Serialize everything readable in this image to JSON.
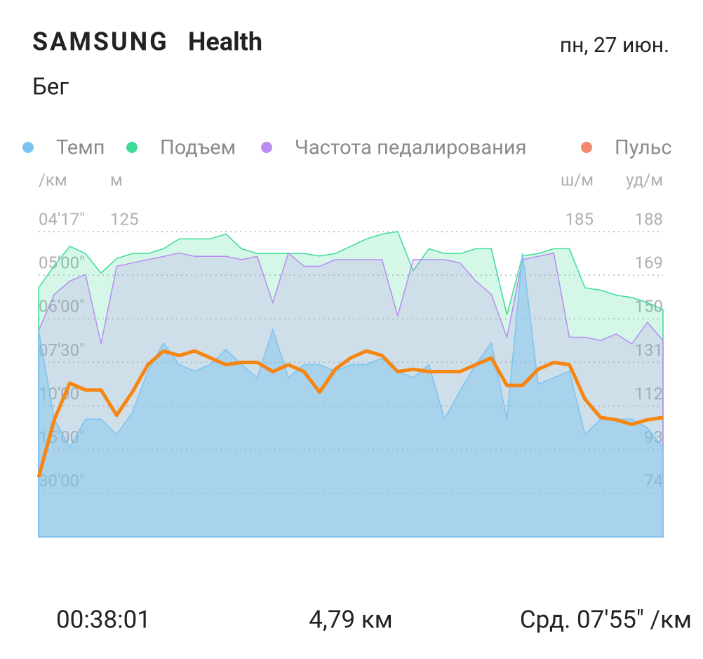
{
  "header": {
    "brand": "SAMSUNG",
    "app": "Health",
    "date": "пн, 27 июн.",
    "activity": "Бег"
  },
  "chart_data": {
    "type": "multi-area",
    "axes": [
      {
        "unit": "/км",
        "lim": [
          0,
          14
        ],
        "ticks": [
          {
            "value": 14,
            "label": "04'17\""
          },
          {
            "value": 12,
            "label": "05'00\""
          },
          {
            "value": 10,
            "label": "06'00\""
          },
          {
            "value": 8,
            "label": "07'30\""
          },
          {
            "value": 6,
            "label": "10'00\""
          },
          {
            "value": 4,
            "label": "15'00\""
          },
          {
            "value": 2,
            "label": "30'00\""
          }
        ]
      },
      {
        "unit": "м",
        "lim": [
          0,
          125
        ],
        "ticks": [
          125
        ]
      },
      {
        "unit": "ш/м",
        "lim": [
          0,
          185
        ],
        "ticks": [
          185
        ]
      },
      {
        "unit": "уд/м",
        "lim": [
          55,
          188
        ],
        "ticks": [
          188,
          169,
          150,
          131,
          112,
          93,
          74
        ]
      }
    ],
    "grid": true,
    "series": [
      {
        "name": "Темп",
        "color": "#7cc4f0",
        "axis": 0,
        "values": [
          9.5,
          5.4,
          4.1,
          5.4,
          5.4,
          4.7,
          5.7,
          7.6,
          8.9,
          7.9,
          7.6,
          7.9,
          8.6,
          7.9,
          7.3,
          9.5,
          7.3,
          7.9,
          7.9,
          7.6,
          7.9,
          7.9,
          8.2,
          7.6,
          7.3,
          7.9,
          5.4,
          6.7,
          7.9,
          8.9,
          5.4,
          13.0,
          7.0,
          7.3,
          7.6,
          4.7,
          5.4,
          5.4,
          5.4,
          5.0,
          4.1
        ]
      },
      {
        "name": "Подъем",
        "color": "#3ddc97",
        "axis": 1,
        "values": [
          102,
          111,
          119,
          116,
          108,
          114,
          116,
          116,
          118,
          122,
          122,
          122,
          124,
          118,
          116,
          116,
          116,
          116,
          115,
          116,
          119,
          122,
          124,
          125,
          109,
          118,
          116,
          116,
          118,
          118,
          91,
          115,
          116,
          118,
          118,
          102,
          101,
          99,
          98,
          96,
          93
        ]
      },
      {
        "name": "Частота педалирования",
        "color": "#b98cf0",
        "axis": 2,
        "values": [
          125,
          147,
          155,
          159,
          117,
          164,
          166,
          168,
          170,
          172,
          170,
          170,
          170,
          168,
          170,
          142,
          172,
          164,
          164,
          168,
          168,
          168,
          168,
          134,
          168,
          168,
          168,
          166,
          155,
          147,
          121,
          168,
          170,
          172,
          121,
          121,
          119,
          123,
          117,
          130,
          119
        ]
      },
      {
        "name": "Пульс",
        "color": "#f28a6e",
        "line_color": "#f68511",
        "axis": 3,
        "values": [
          81,
          106,
          122,
          119,
          119,
          108,
          118,
          130,
          136,
          134,
          136,
          133,
          130,
          131,
          131,
          127,
          130,
          127,
          118,
          128,
          133,
          136,
          134,
          127,
          128,
          127,
          127,
          127,
          130,
          133,
          121,
          121,
          128,
          131,
          130,
          115,
          107,
          106,
          104,
          106,
          107
        ]
      }
    ]
  },
  "footer": {
    "duration": "00:38:01",
    "distance": "4,79 км",
    "pace": "Срд. 07'55\" /км"
  }
}
